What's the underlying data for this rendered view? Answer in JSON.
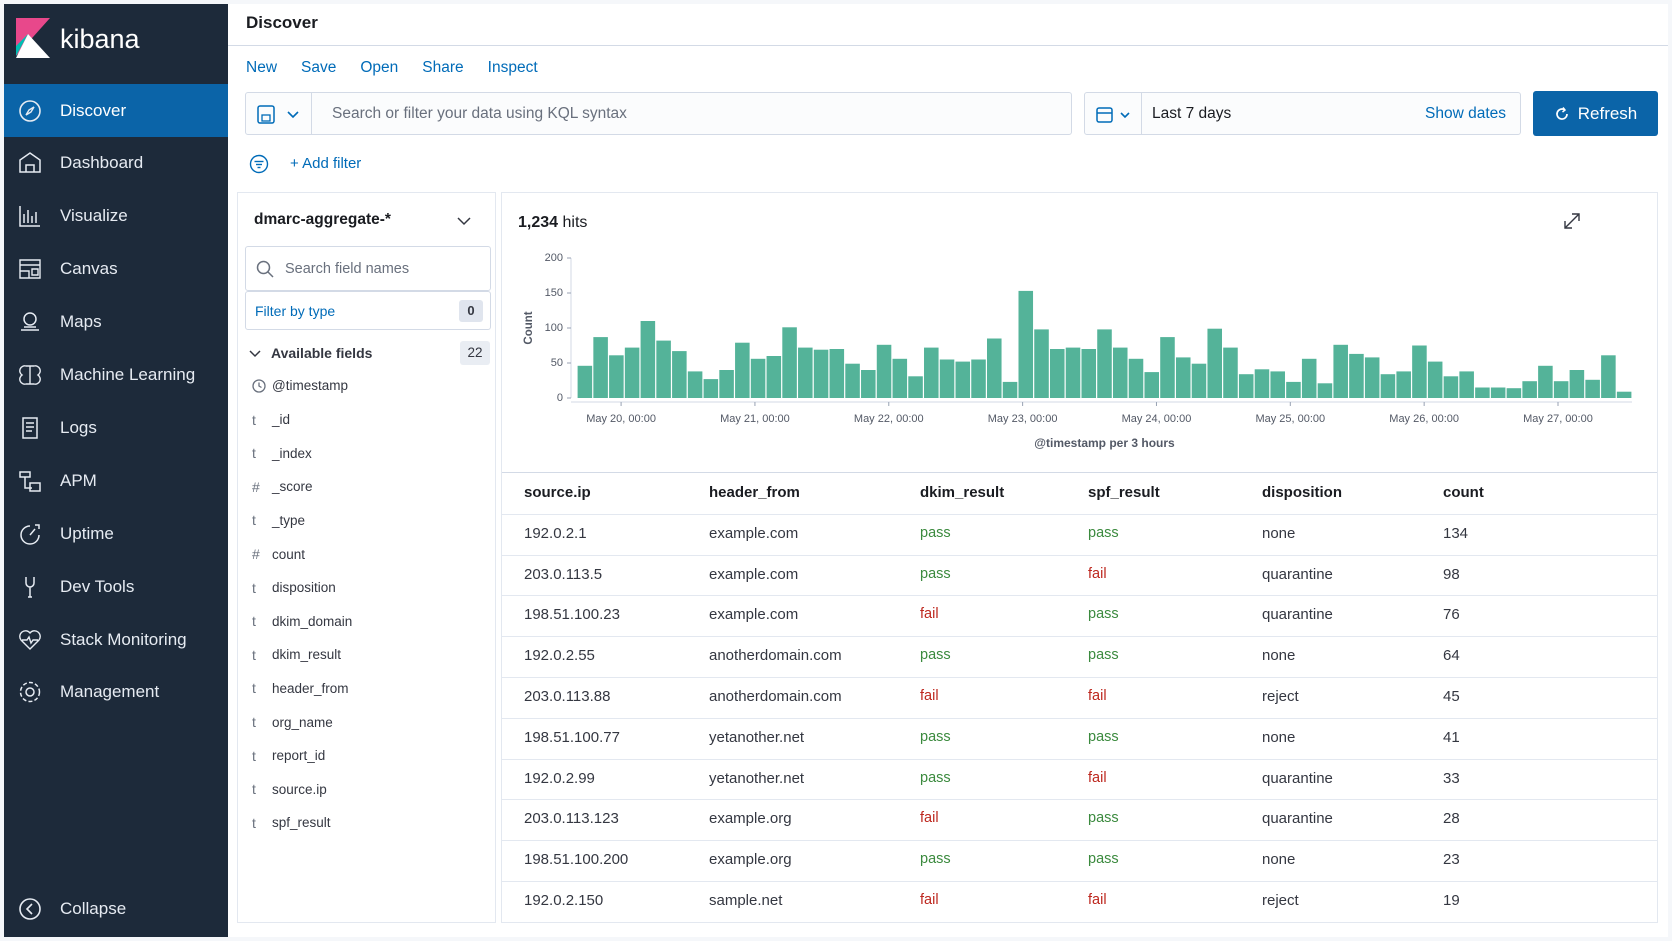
{
  "brand": "kibana",
  "nav": {
    "items": [
      "Discover",
      "Dashboard",
      "Visualize",
      "Canvas",
      "Maps",
      "Machine Learning",
      "Logs",
      "APM",
      "Uptime",
      "Dev Tools",
      "Stack Monitoring",
      "Management"
    ],
    "collapse": "Collapse"
  },
  "header": {
    "title": "Discover"
  },
  "menu": [
    "New",
    "Save",
    "Open",
    "Share",
    "Inspect"
  ],
  "search": {
    "placeholder": "Search or filter your data using KQL syntax",
    "date_range": "Last 7 days",
    "show_dates": "Show dates",
    "refresh": "Refresh",
    "add_filter": "+ Add filter"
  },
  "sidebar_panel": {
    "index_pattern": "dmarc-aggregate-*",
    "search_fields": "Search field names",
    "filter_by_type": "Filter by type",
    "filter_count": "0",
    "available_fields": "Available fields",
    "available_count": "22",
    "fields": [
      {
        "name": "@timestamp"
      },
      {
        "type": "t",
        "name": "_id"
      },
      {
        "type": "t",
        "name": "_index"
      },
      {
        "type": "#",
        "name": "_score"
      },
      {
        "type": "t",
        "name": "_type"
      },
      {
        "type": "#",
        "name": "count"
      },
      {
        "type": "t",
        "name": "disposition"
      },
      {
        "type": "t",
        "name": "dkim_domain"
      },
      {
        "type": "t",
        "name": "dkim_result"
      },
      {
        "type": "t",
        "name": "header_from"
      },
      {
        "type": "t",
        "name": "org_name"
      },
      {
        "type": "t",
        "name": "report_id"
      },
      {
        "type": "t",
        "name": "source.ip"
      },
      {
        "type": "t",
        "name": "spf_result"
      }
    ]
  },
  "hits": {
    "count": "1,234",
    "label": "hits"
  },
  "chart_data": {
    "type": "bar",
    "ylabel": "Count",
    "xlabel": "@timestamp per 3 hours",
    "color": "#54b399",
    "values": [
      46,
      87,
      61,
      72,
      110,
      82,
      67,
      38,
      27,
      40,
      79,
      56,
      60,
      101,
      72,
      69,
      70,
      49,
      40,
      76,
      56,
      31,
      72,
      55,
      52,
      55,
      85,
      23,
      153,
      98,
      70,
      72,
      70,
      98,
      72,
      56,
      37,
      87,
      58,
      49,
      99,
      72,
      34,
      41,
      38,
      23,
      56,
      21,
      76,
      63,
      58,
      34,
      38,
      75,
      52,
      31,
      38,
      15,
      15,
      14,
      24,
      46,
      24,
      40,
      26,
      61,
      9
    ],
    "xlim": [
      0,
      67
    ],
    "xticks": [
      {
        "value": 2.8,
        "label": "May 20, 00:00"
      },
      {
        "value": 11.3,
        "label": "May 21, 00:00"
      },
      {
        "value": 19.8,
        "label": "May 22, 00:00"
      },
      {
        "value": 28.3,
        "label": "May 23, 00:00"
      },
      {
        "value": 36.8,
        "label": "May 24, 00:00"
      },
      {
        "value": 45.3,
        "label": "May 25, 00:00"
      },
      {
        "value": 53.8,
        "label": "May 26, 00:00"
      },
      {
        "value": 62.3,
        "label": "May 27, 00:00"
      }
    ],
    "ylim": [
      0,
      200
    ],
    "yticks": [
      0,
      50,
      100,
      150,
      200
    ]
  },
  "table": {
    "columns": [
      "source.ip",
      "header_from",
      "dkim_result",
      "spf_result",
      "disposition",
      "count"
    ],
    "status_colors": {
      "pass": "#3b8a3e",
      "fail": "#bd271e"
    },
    "rows": [
      [
        "192.0.2.1",
        "example.com",
        "pass",
        "pass",
        "none",
        134
      ],
      [
        "203.0.113.5",
        "example.com",
        "pass",
        "fail",
        "quarantine",
        98
      ],
      [
        "198.51.100.23",
        "example.com",
        "fail",
        "pass",
        "quarantine",
        76
      ],
      [
        "192.0.2.55",
        "anotherdomain.com",
        "pass",
        "pass",
        "none",
        64
      ],
      [
        "203.0.113.88",
        "anotherdomain.com",
        "fail",
        "fail",
        "reject",
        45
      ],
      [
        "198.51.100.77",
        "yetanother.net",
        "pass",
        "pass",
        "none",
        41
      ],
      [
        "192.0.2.99",
        "yetanother.net",
        "pass",
        "fail",
        "quarantine",
        33
      ],
      [
        "203.0.113.123",
        "example.org",
        "fail",
        "pass",
        "quarantine",
        28
      ],
      [
        "198.51.100.200",
        "example.org",
        "pass",
        "pass",
        "none",
        23
      ],
      [
        "192.0.2.150",
        "sample.net",
        "fail",
        "fail",
        "reject",
        19
      ]
    ]
  }
}
